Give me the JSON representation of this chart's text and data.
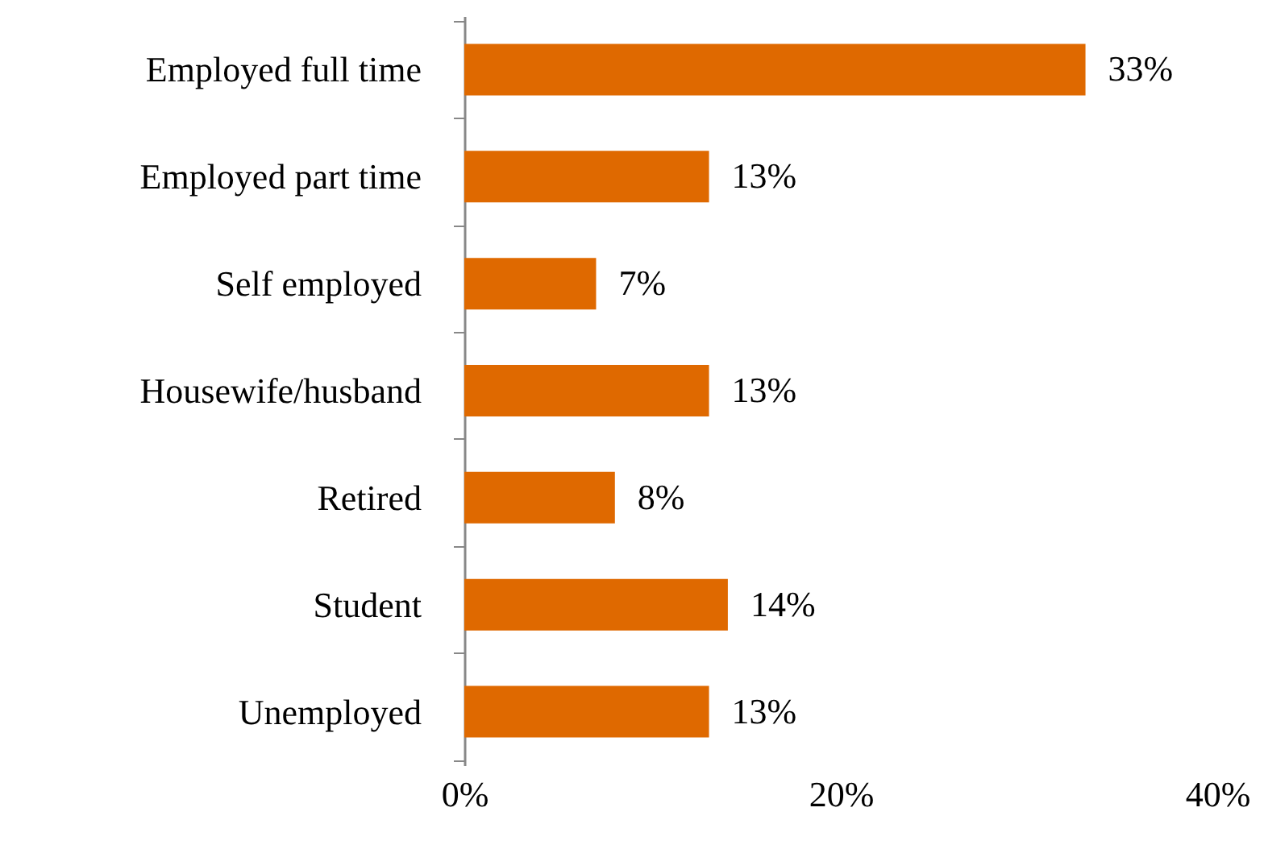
{
  "chart_data": {
    "type": "bar",
    "orientation": "horizontal",
    "categories": [
      "Employed full time",
      "Employed part time",
      "Self employed",
      "Housewife/husband",
      "Retired",
      "Student",
      "Unemployed"
    ],
    "values": [
      33,
      13,
      7,
      13,
      8,
      14,
      13
    ],
    "value_labels": [
      "33%",
      "13%",
      "7%",
      "13%",
      "8%",
      "14%",
      "13%"
    ],
    "color": "#df6900",
    "xlim": [
      0,
      40
    ],
    "xticks": [
      {
        "value": 0,
        "label": "0%"
      },
      {
        "value": 20,
        "label": "20%"
      },
      {
        "value": 40,
        "label": "40%"
      }
    ]
  }
}
